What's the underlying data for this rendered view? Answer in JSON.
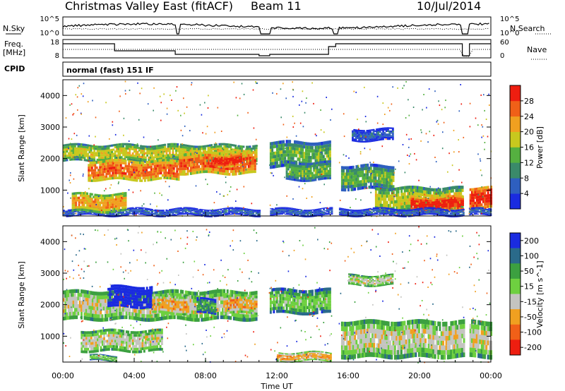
{
  "header": {
    "title": "Christmas Valley East (fitACF)",
    "beam": "Beam 11",
    "date": "10/Jul/2014"
  },
  "top_panels": {
    "nsky_label": "N.Sky",
    "nsearch_label": "N.Search",
    "freq_label_1": "Freq.",
    "freq_label_2": "[MHz]",
    "nave_label": "Nave",
    "cpid_label": "CPID",
    "cpid_text": "normal (fast) 151 IF",
    "noise_left_ticks": [
      "10^5",
      "10^0"
    ],
    "noise_right_ticks": [
      "10^5",
      "10^0"
    ],
    "freq_left_ticks": [
      "18",
      "8"
    ],
    "freq_right_ticks": [
      "60",
      "0"
    ]
  },
  "chart_data": [
    {
      "type": "heatmap",
      "name": "power",
      "ylabel": "Slant Range [km]",
      "xlabel": "",
      "y_ticks": [
        1000,
        2000,
        3000,
        4000
      ],
      "ylim": [
        180,
        4500
      ],
      "x_ticks_hours": [
        0,
        4,
        8,
        12,
        16,
        20,
        24
      ],
      "xlim_hours": [
        0,
        24
      ],
      "colorbar": {
        "label": "Power [dB]",
        "ticks": [
          4,
          8,
          12,
          16,
          20,
          24,
          28
        ],
        "range": [
          0,
          32
        ],
        "colors": [
          "#1a2be0",
          "#2e5fbf",
          "#3a8a6a",
          "#55b040",
          "#c8c81e",
          "#f0a020",
          "#f06018",
          "#ee1e10"
        ]
      },
      "bands": [
        {
          "t0": 0.0,
          "t1": 10.8,
          "r_lo": 1900,
          "r_hi": 2450,
          "level": 4
        },
        {
          "t0": 1.4,
          "t1": 6.5,
          "r_lo": 1300,
          "r_hi": 1950,
          "level": 6
        },
        {
          "t0": 6.5,
          "t1": 10.8,
          "r_lo": 1500,
          "r_hi": 2200,
          "level": 6
        },
        {
          "t0": 8.5,
          "t1": 10.0,
          "r_lo": 1750,
          "r_hi": 2150,
          "level": 7
        },
        {
          "t0": 11.6,
          "t1": 15.0,
          "r_lo": 1700,
          "r_hi": 2550,
          "level": 3
        },
        {
          "t0": 12.5,
          "t1": 15.0,
          "r_lo": 1300,
          "r_hi": 1900,
          "level": 3
        },
        {
          "t0": 15.6,
          "t1": 18.5,
          "r_lo": 1000,
          "r_hi": 1800,
          "level": 3
        },
        {
          "t0": 17.5,
          "t1": 22.4,
          "r_lo": 300,
          "r_hi": 1100,
          "level": 4
        },
        {
          "t0": 19.5,
          "t1": 22.4,
          "r_lo": 300,
          "r_hi": 800,
          "level": 7
        },
        {
          "t0": 22.8,
          "t1": 24.0,
          "r_lo": 400,
          "r_hi": 1100,
          "level": 7
        },
        {
          "t0": 16.2,
          "t1": 18.5,
          "r_lo": 2550,
          "r_hi": 2950,
          "level": 1
        },
        {
          "t0": 0.0,
          "t1": 24.0,
          "r_lo": 180,
          "r_hi": 420,
          "level": 1
        },
        {
          "t0": 0.5,
          "t1": 3.5,
          "r_lo": 300,
          "r_hi": 900,
          "level": 5
        }
      ]
    },
    {
      "type": "heatmap",
      "name": "velocity",
      "ylabel": "Slant Range [km]",
      "xlabel": "Time UT",
      "y_ticks": [
        1000,
        2000,
        3000,
        4000
      ],
      "ylim": [
        180,
        4500
      ],
      "x_ticks": [
        "00:00",
        "04:00",
        "08:00",
        "12:00",
        "16:00",
        "20:00",
        "00:00"
      ],
      "xlim_hours": [
        0,
        24
      ],
      "colorbar": {
        "label": "Velocity [m s^-1]",
        "ticks": [
          200,
          100,
          50,
          15,
          -15,
          -50,
          -100,
          -200
        ],
        "colors": [
          "#1a2be0",
          "#2a6a8a",
          "#3ca040",
          "#6ed040",
          "#c4c4c0",
          "#f0a020",
          "#f06018",
          "#ee1e10"
        ]
      },
      "bands": [
        {
          "t0": 0.0,
          "t1": 10.8,
          "r_lo": 1500,
          "r_hi": 2450,
          "level": 4
        },
        {
          "t0": 2.5,
          "t1": 5.0,
          "r_lo": 1900,
          "r_hi": 2600,
          "level": 0
        },
        {
          "t0": 5.0,
          "t1": 7.0,
          "r_lo": 1700,
          "r_hi": 2300,
          "level": 5
        },
        {
          "t0": 7.5,
          "t1": 8.5,
          "r_lo": 1700,
          "r_hi": 2200,
          "level": 2
        },
        {
          "t0": 9.0,
          "t1": 10.8,
          "r_lo": 1700,
          "r_hi": 2300,
          "level": 5
        },
        {
          "t0": 11.6,
          "t1": 15.0,
          "r_lo": 1700,
          "r_hi": 2500,
          "level": 3
        },
        {
          "t0": 15.6,
          "t1": 24.0,
          "r_lo": 300,
          "r_hi": 1500,
          "level": 4
        },
        {
          "t0": 12.0,
          "t1": 15.0,
          "r_lo": 200,
          "r_hi": 500,
          "level": 5
        },
        {
          "t0": 1.0,
          "t1": 5.5,
          "r_lo": 500,
          "r_hi": 1200,
          "level": 4
        },
        {
          "t0": 16.0,
          "t1": 18.5,
          "r_lo": 2600,
          "r_hi": 2950,
          "level": 4
        },
        {
          "t0": 1.5,
          "t1": 3.0,
          "r_lo": 200,
          "r_hi": 400,
          "level": 3
        }
      ]
    }
  ]
}
